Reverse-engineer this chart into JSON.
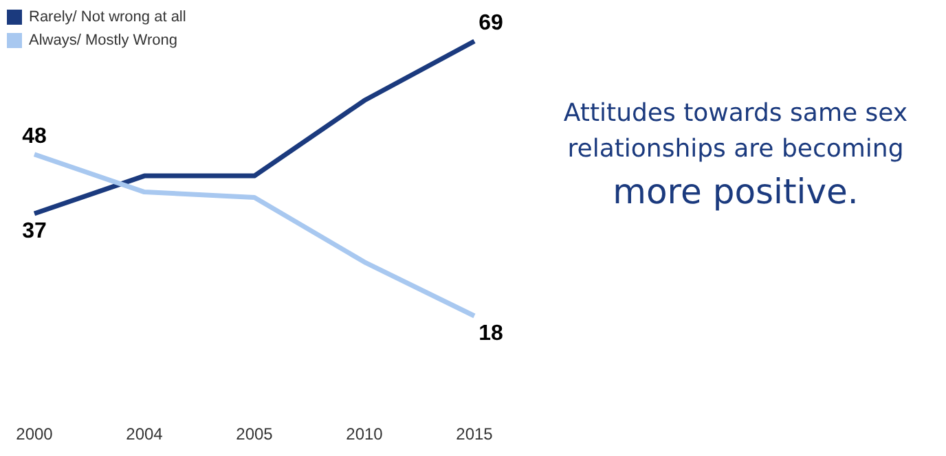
{
  "chart_data": {
    "type": "line",
    "categories": [
      "2000",
      "2004",
      "2005",
      "2010",
      "2015"
    ],
    "series": [
      {
        "name": "Rarely/ Not wrong at all",
        "color": "#1b3a7e",
        "values": [
          37,
          44,
          44,
          58,
          69
        ],
        "value_labels": [
          "37",
          null,
          null,
          null,
          "69"
        ]
      },
      {
        "name": "Always/ Mostly Wrong",
        "color": "#a8c8f0",
        "values": [
          48,
          41,
          40,
          28,
          18
        ],
        "value_labels": [
          "48",
          null,
          null,
          null,
          "18"
        ]
      }
    ],
    "legend": "top left",
    "marker": "none",
    "line_style": "solid",
    "grid": false,
    "annotations": [
      "Attitudes towards same sex relationships are becoming",
      "more positive."
    ]
  }
}
